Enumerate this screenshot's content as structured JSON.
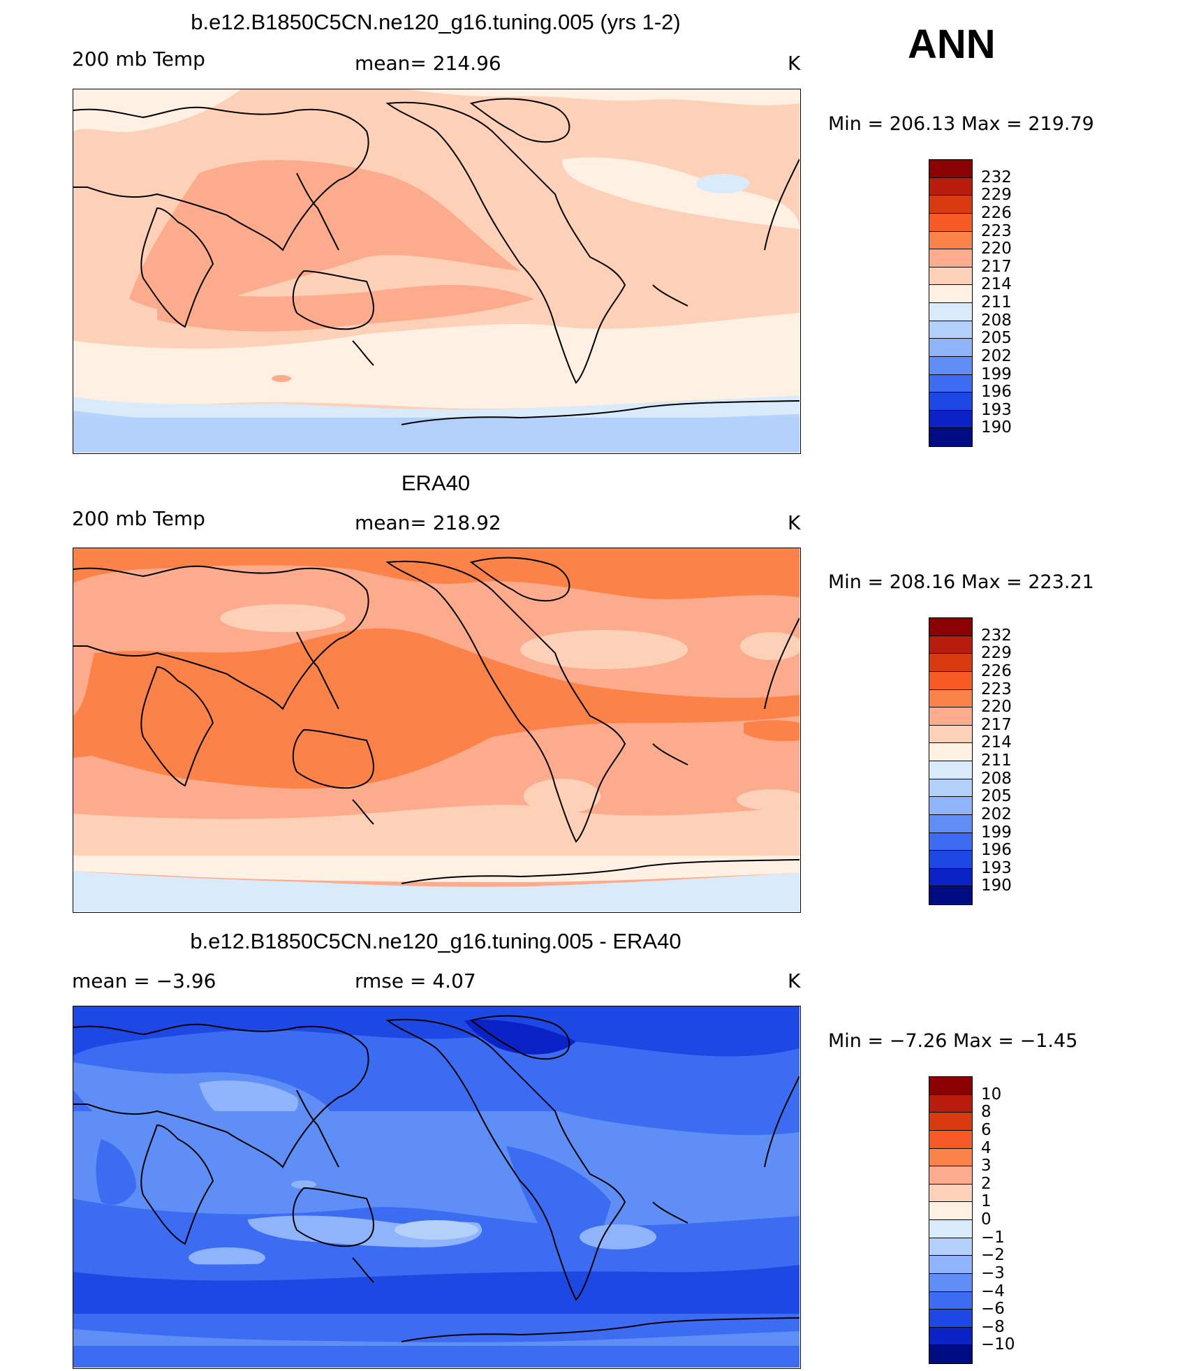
{
  "season": "ANN",
  "panels": [
    {
      "id": "model",
      "title": "b.e12.B1850C5CN.ne120_g16.tuning.005 (yrs 1-2)",
      "left_text": "200 mb Temp",
      "mid_text": "mean=  214.96",
      "units": "K",
      "minmax": "Min  =  206.13  Max  =  219.79",
      "levels": [
        "232",
        "229",
        "226",
        "223",
        "220",
        "217",
        "214",
        "211",
        "208",
        "205",
        "202",
        "199",
        "196",
        "193",
        "190"
      ],
      "colors": [
        "#8b0000",
        "#b71c0c",
        "#d93a10",
        "#f75a24",
        "#fb8248",
        "#fcac8c",
        "#fdd0b8",
        "#fef0e2",
        "#d9ebfb",
        "#b3d0fb",
        "#8fb4fb",
        "#5e8ef6",
        "#3c6cf2",
        "#1e48e4",
        "#0a22c6",
        "#000c82"
      ]
    },
    {
      "id": "obs",
      "title": "ERA40",
      "left_text": "200 mb Temp",
      "mid_text": "mean=  218.92",
      "units": "K",
      "minmax": "Min  =  208.16  Max  =  223.21",
      "levels": [
        "232",
        "229",
        "226",
        "223",
        "220",
        "217",
        "214",
        "211",
        "208",
        "205",
        "202",
        "199",
        "196",
        "193",
        "190"
      ],
      "colors": [
        "#8b0000",
        "#b71c0c",
        "#d93a10",
        "#f75a24",
        "#fb8248",
        "#fcac8c",
        "#fdd0b8",
        "#fef0e2",
        "#d9ebfb",
        "#b3d0fb",
        "#8fb4fb",
        "#5e8ef6",
        "#3c6cf2",
        "#1e48e4",
        "#0a22c6",
        "#000c82"
      ]
    },
    {
      "id": "diff",
      "title": "b.e12.B1850C5CN.ne120_g16.tuning.005 - ERA40",
      "left_text": "mean  =     −3.96",
      "mid_text": "rmse  =     4.07",
      "units": "K",
      "minmax": "Min  =    −7.26  Max  =    −1.45",
      "levels": [
        "10",
        "8",
        "6",
        "4",
        "3",
        "2",
        "1",
        "0",
        "−1",
        "−2",
        "−3",
        "−4",
        "−6",
        "−8",
        "−10"
      ],
      "colors": [
        "#8b0000",
        "#b71c0c",
        "#d93a10",
        "#f75a24",
        "#fb8248",
        "#fcac8c",
        "#fdd0b8",
        "#fef0e2",
        "#d9ebfb",
        "#b3d0fb",
        "#8fb4fb",
        "#5e8ef6",
        "#3c6cf2",
        "#1e48e4",
        "#0a22c6",
        "#000c82"
      ]
    }
  ]
}
